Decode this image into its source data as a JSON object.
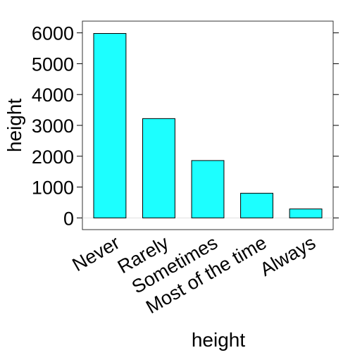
{
  "chart_data": {
    "type": "bar",
    "categories": [
      "Never",
      "Rarely",
      "Sometimes",
      "Most of the time",
      "Always"
    ],
    "values": [
      5980,
      3220,
      1860,
      800,
      290
    ],
    "title": "",
    "xlabel": "height",
    "ylabel": "height",
    "ylim": [
      -380,
      6380
    ],
    "yticks": [
      0,
      1000,
      2000,
      3000,
      4000,
      5000,
      6000
    ],
    "yticklabels": [
      "0",
      "1000",
      "2000",
      "3000",
      "4000",
      "5000",
      "6000"
    ],
    "bar_color": "#1CFFFF",
    "grid": false,
    "legend": "none"
  }
}
